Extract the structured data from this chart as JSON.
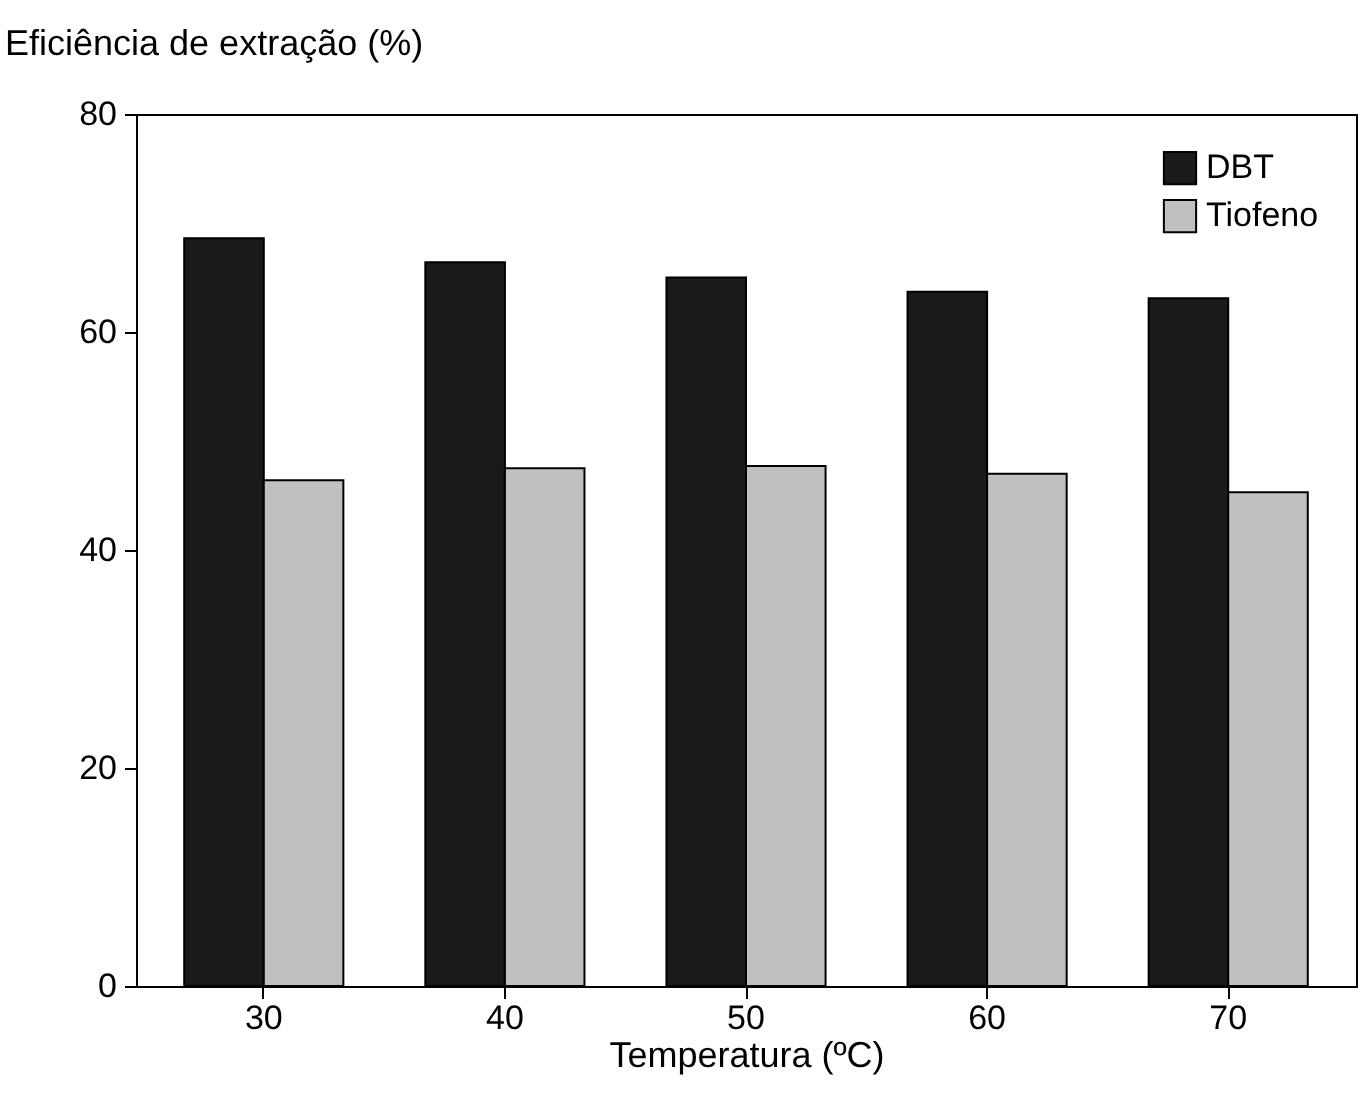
{
  "chart_data": {
    "type": "bar",
    "xlabel": "Temperatura (ºC)",
    "ylabel": "Eficiência de extração (%)",
    "categories": [
      "30",
      "40",
      "50",
      "60",
      "70"
    ],
    "series": [
      {
        "name": "DBT",
        "color": "#1a1a1a",
        "values": [
          68.6,
          66.4,
          65.0,
          63.7,
          63.1
        ]
      },
      {
        "name": "Tiofeno",
        "color": "#c0c0c0",
        "values": [
          46.4,
          47.5,
          47.7,
          47.0,
          45.3
        ]
      }
    ],
    "ylim": [
      0,
      80
    ],
    "yticks": [
      0,
      20,
      40,
      60,
      80
    ],
    "grid": false,
    "legend": "top right"
  }
}
